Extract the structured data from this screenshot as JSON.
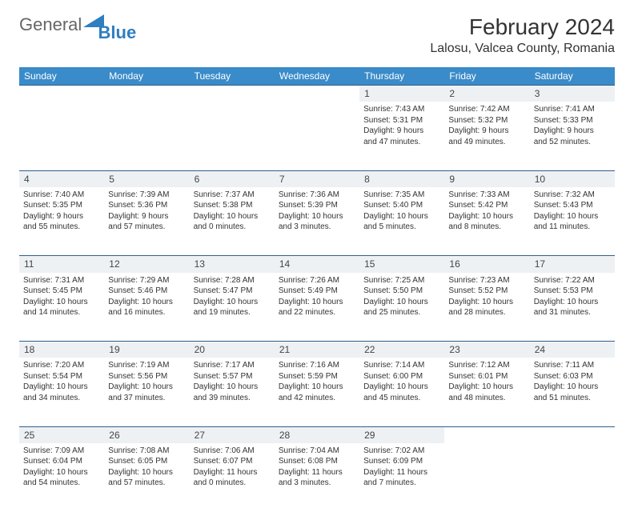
{
  "brand": {
    "part1": "General",
    "part2": "Blue"
  },
  "title": "February 2024",
  "location": "Lalosu, Valcea County, Romania",
  "colors": {
    "header_bg": "#3a8bc9",
    "daynum_bg": "#eef1f3",
    "rule": "#2f5f8f",
    "brand_blue": "#2f7ec0"
  },
  "dayNames": [
    "Sunday",
    "Monday",
    "Tuesday",
    "Wednesday",
    "Thursday",
    "Friday",
    "Saturday"
  ],
  "weeks": [
    [
      null,
      null,
      null,
      null,
      {
        "n": "1",
        "sr": "Sunrise: 7:43 AM",
        "ss": "Sunset: 5:31 PM",
        "d1": "Daylight: 9 hours",
        "d2": "and 47 minutes."
      },
      {
        "n": "2",
        "sr": "Sunrise: 7:42 AM",
        "ss": "Sunset: 5:32 PM",
        "d1": "Daylight: 9 hours",
        "d2": "and 49 minutes."
      },
      {
        "n": "3",
        "sr": "Sunrise: 7:41 AM",
        "ss": "Sunset: 5:33 PM",
        "d1": "Daylight: 9 hours",
        "d2": "and 52 minutes."
      }
    ],
    [
      {
        "n": "4",
        "sr": "Sunrise: 7:40 AM",
        "ss": "Sunset: 5:35 PM",
        "d1": "Daylight: 9 hours",
        "d2": "and 55 minutes."
      },
      {
        "n": "5",
        "sr": "Sunrise: 7:39 AM",
        "ss": "Sunset: 5:36 PM",
        "d1": "Daylight: 9 hours",
        "d2": "and 57 minutes."
      },
      {
        "n": "6",
        "sr": "Sunrise: 7:37 AM",
        "ss": "Sunset: 5:38 PM",
        "d1": "Daylight: 10 hours",
        "d2": "and 0 minutes."
      },
      {
        "n": "7",
        "sr": "Sunrise: 7:36 AM",
        "ss": "Sunset: 5:39 PM",
        "d1": "Daylight: 10 hours",
        "d2": "and 3 minutes."
      },
      {
        "n": "8",
        "sr": "Sunrise: 7:35 AM",
        "ss": "Sunset: 5:40 PM",
        "d1": "Daylight: 10 hours",
        "d2": "and 5 minutes."
      },
      {
        "n": "9",
        "sr": "Sunrise: 7:33 AM",
        "ss": "Sunset: 5:42 PM",
        "d1": "Daylight: 10 hours",
        "d2": "and 8 minutes."
      },
      {
        "n": "10",
        "sr": "Sunrise: 7:32 AM",
        "ss": "Sunset: 5:43 PM",
        "d1": "Daylight: 10 hours",
        "d2": "and 11 minutes."
      }
    ],
    [
      {
        "n": "11",
        "sr": "Sunrise: 7:31 AM",
        "ss": "Sunset: 5:45 PM",
        "d1": "Daylight: 10 hours",
        "d2": "and 14 minutes."
      },
      {
        "n": "12",
        "sr": "Sunrise: 7:29 AM",
        "ss": "Sunset: 5:46 PM",
        "d1": "Daylight: 10 hours",
        "d2": "and 16 minutes."
      },
      {
        "n": "13",
        "sr": "Sunrise: 7:28 AM",
        "ss": "Sunset: 5:47 PM",
        "d1": "Daylight: 10 hours",
        "d2": "and 19 minutes."
      },
      {
        "n": "14",
        "sr": "Sunrise: 7:26 AM",
        "ss": "Sunset: 5:49 PM",
        "d1": "Daylight: 10 hours",
        "d2": "and 22 minutes."
      },
      {
        "n": "15",
        "sr": "Sunrise: 7:25 AM",
        "ss": "Sunset: 5:50 PM",
        "d1": "Daylight: 10 hours",
        "d2": "and 25 minutes."
      },
      {
        "n": "16",
        "sr": "Sunrise: 7:23 AM",
        "ss": "Sunset: 5:52 PM",
        "d1": "Daylight: 10 hours",
        "d2": "and 28 minutes."
      },
      {
        "n": "17",
        "sr": "Sunrise: 7:22 AM",
        "ss": "Sunset: 5:53 PM",
        "d1": "Daylight: 10 hours",
        "d2": "and 31 minutes."
      }
    ],
    [
      {
        "n": "18",
        "sr": "Sunrise: 7:20 AM",
        "ss": "Sunset: 5:54 PM",
        "d1": "Daylight: 10 hours",
        "d2": "and 34 minutes."
      },
      {
        "n": "19",
        "sr": "Sunrise: 7:19 AM",
        "ss": "Sunset: 5:56 PM",
        "d1": "Daylight: 10 hours",
        "d2": "and 37 minutes."
      },
      {
        "n": "20",
        "sr": "Sunrise: 7:17 AM",
        "ss": "Sunset: 5:57 PM",
        "d1": "Daylight: 10 hours",
        "d2": "and 39 minutes."
      },
      {
        "n": "21",
        "sr": "Sunrise: 7:16 AM",
        "ss": "Sunset: 5:59 PM",
        "d1": "Daylight: 10 hours",
        "d2": "and 42 minutes."
      },
      {
        "n": "22",
        "sr": "Sunrise: 7:14 AM",
        "ss": "Sunset: 6:00 PM",
        "d1": "Daylight: 10 hours",
        "d2": "and 45 minutes."
      },
      {
        "n": "23",
        "sr": "Sunrise: 7:12 AM",
        "ss": "Sunset: 6:01 PM",
        "d1": "Daylight: 10 hours",
        "d2": "and 48 minutes."
      },
      {
        "n": "24",
        "sr": "Sunrise: 7:11 AM",
        "ss": "Sunset: 6:03 PM",
        "d1": "Daylight: 10 hours",
        "d2": "and 51 minutes."
      }
    ],
    [
      {
        "n": "25",
        "sr": "Sunrise: 7:09 AM",
        "ss": "Sunset: 6:04 PM",
        "d1": "Daylight: 10 hours",
        "d2": "and 54 minutes."
      },
      {
        "n": "26",
        "sr": "Sunrise: 7:08 AM",
        "ss": "Sunset: 6:05 PM",
        "d1": "Daylight: 10 hours",
        "d2": "and 57 minutes."
      },
      {
        "n": "27",
        "sr": "Sunrise: 7:06 AM",
        "ss": "Sunset: 6:07 PM",
        "d1": "Daylight: 11 hours",
        "d2": "and 0 minutes."
      },
      {
        "n": "28",
        "sr": "Sunrise: 7:04 AM",
        "ss": "Sunset: 6:08 PM",
        "d1": "Daylight: 11 hours",
        "d2": "and 3 minutes."
      },
      {
        "n": "29",
        "sr": "Sunrise: 7:02 AM",
        "ss": "Sunset: 6:09 PM",
        "d1": "Daylight: 11 hours",
        "d2": "and 7 minutes."
      },
      null,
      null
    ]
  ]
}
